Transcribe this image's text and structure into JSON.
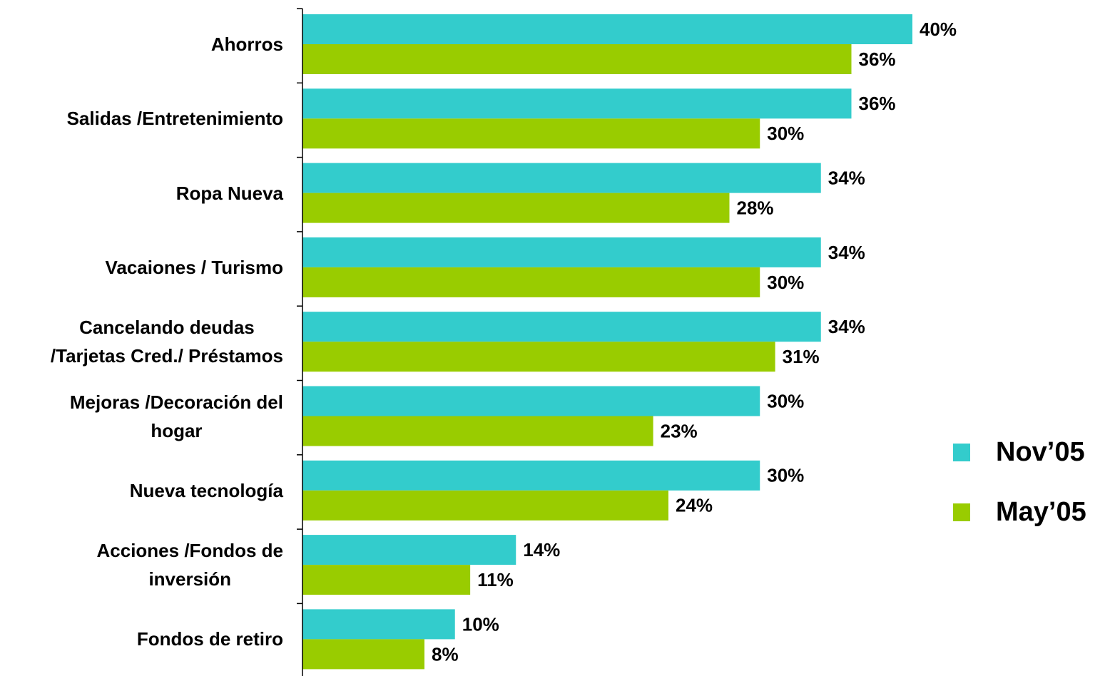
{
  "chart_data": {
    "type": "hbar",
    "categories": [
      "Ahorros",
      "Salidas /Entretenimiento",
      "Ropa Nueva",
      "Vacaiones / Turismo",
      "Cancelando deudas\n/Tarjetas Cred./ Préstamos",
      "Mejoras /Decoración del\nhogar",
      "Nueva tecnología",
      "Acciones /Fondos de\ninversión",
      "Fondos de retiro"
    ],
    "series": [
      {
        "name": "Nov’05",
        "color": "#33CCCC",
        "values": [
          40,
          36,
          34,
          34,
          34,
          30,
          30,
          14,
          10
        ],
        "value_labels": [
          "40%",
          "36%",
          "34%",
          "34%",
          "34%",
          "30%",
          "30%",
          "14%",
          "10%"
        ]
      },
      {
        "name": "May’05",
        "color": "#99CC00",
        "values": [
          36,
          30,
          28,
          30,
          31,
          23,
          24,
          11,
          8
        ],
        "value_labels": [
          "36%",
          "30%",
          "28%",
          "30%",
          "31%",
          "23%",
          "24%",
          "11%",
          "8%"
        ]
      }
    ],
    "xlim": [
      0,
      40
    ]
  }
}
